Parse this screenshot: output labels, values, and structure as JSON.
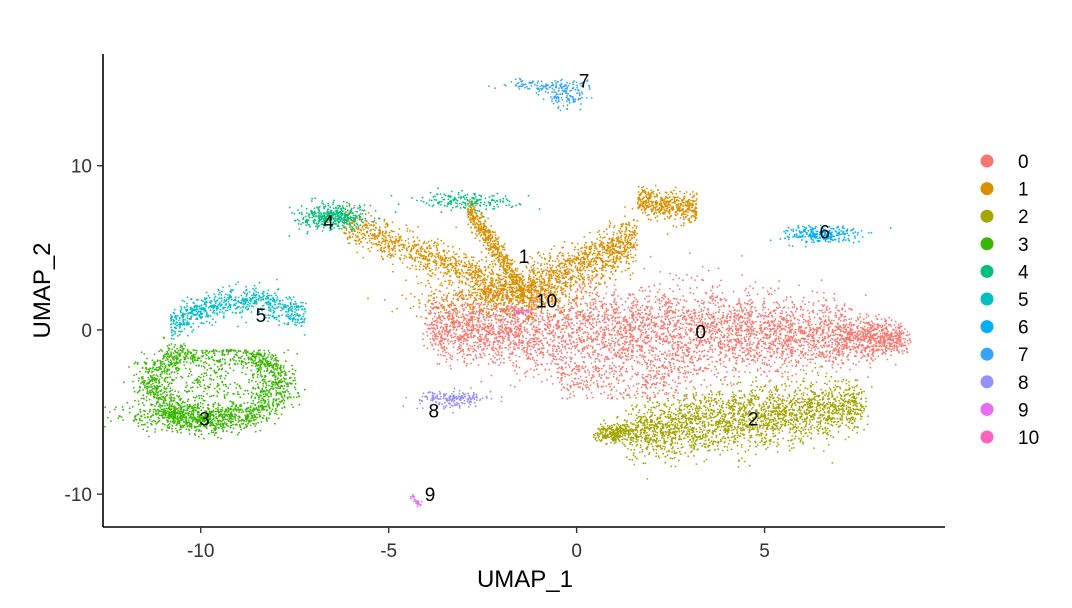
{
  "chart_data": {
    "type": "scatter",
    "title": "",
    "xlabel": "UMAP_1",
    "ylabel": "UMAP_2",
    "xlim": [
      -12.6,
      9.8
    ],
    "ylim": [
      -12.0,
      16.8
    ],
    "x_ticks": [
      -10,
      -5,
      0,
      5
    ],
    "x_tick_labels": [
      "-10",
      "-5",
      "0",
      "5"
    ],
    "y_ticks": [
      -10,
      0,
      10
    ],
    "y_tick_labels": [
      "-10",
      "0",
      "10"
    ],
    "grid": false,
    "legend_position": "right",
    "series": [
      {
        "name": "0",
        "color": "#F8766D",
        "center": [
          3.3,
          0.0
        ],
        "approx_points": 5200
      },
      {
        "name": "1",
        "color": "#D89000",
        "center": [
          -1.4,
          4.5
        ],
        "approx_points": 3400
      },
      {
        "name": "2",
        "color": "#A3A500",
        "center": [
          4.5,
          -5.4
        ],
        "approx_points": 2600
      },
      {
        "name": "3",
        "color": "#39B600",
        "center": [
          -9.9,
          -3.9
        ],
        "approx_points": 2200
      },
      {
        "name": "4",
        "color": "#00BF7D",
        "center": [
          -5.5,
          7.0
        ],
        "approx_points": 600
      },
      {
        "name": "5",
        "color": "#00BFC4",
        "center": [
          -8.4,
          1.0
        ],
        "approx_points": 700
      },
      {
        "name": "6",
        "color": "#00B0F6",
        "center": [
          6.5,
          5.8
        ],
        "approx_points": 260
      },
      {
        "name": "7",
        "color": "#35A2FF",
        "center": [
          -0.6,
          14.8
        ],
        "approx_points": 220
      },
      {
        "name": "8",
        "color": "#9590FF",
        "center": [
          -3.3,
          -4.2
        ],
        "approx_points": 200
      },
      {
        "name": "9",
        "color": "#E76BF3",
        "center": [
          -4.3,
          -10.5
        ],
        "approx_points": 30
      },
      {
        "name": "10",
        "color": "#FF62BC",
        "center": [
          -1.4,
          1.2
        ],
        "approx_points": 40
      }
    ],
    "cluster_labels": [
      {
        "text": "0",
        "x": 3.3,
        "y": -0.1
      },
      {
        "text": "1",
        "x": -1.4,
        "y": 4.5
      },
      {
        "text": "2",
        "x": 4.7,
        "y": -5.4
      },
      {
        "text": "3",
        "x": -9.9,
        "y": -5.4
      },
      {
        "text": "4",
        "x": -6.6,
        "y": 6.6
      },
      {
        "text": "5",
        "x": -8.4,
        "y": 0.9
      },
      {
        "text": "6",
        "x": 6.6,
        "y": 6.0
      },
      {
        "text": "7",
        "x": 0.2,
        "y": 15.2
      },
      {
        "text": "8",
        "x": -3.8,
        "y": -4.9
      },
      {
        "text": "9",
        "x": -3.9,
        "y": -10.0
      },
      {
        "text": "10",
        "x": -0.8,
        "y": 1.8
      }
    ]
  }
}
